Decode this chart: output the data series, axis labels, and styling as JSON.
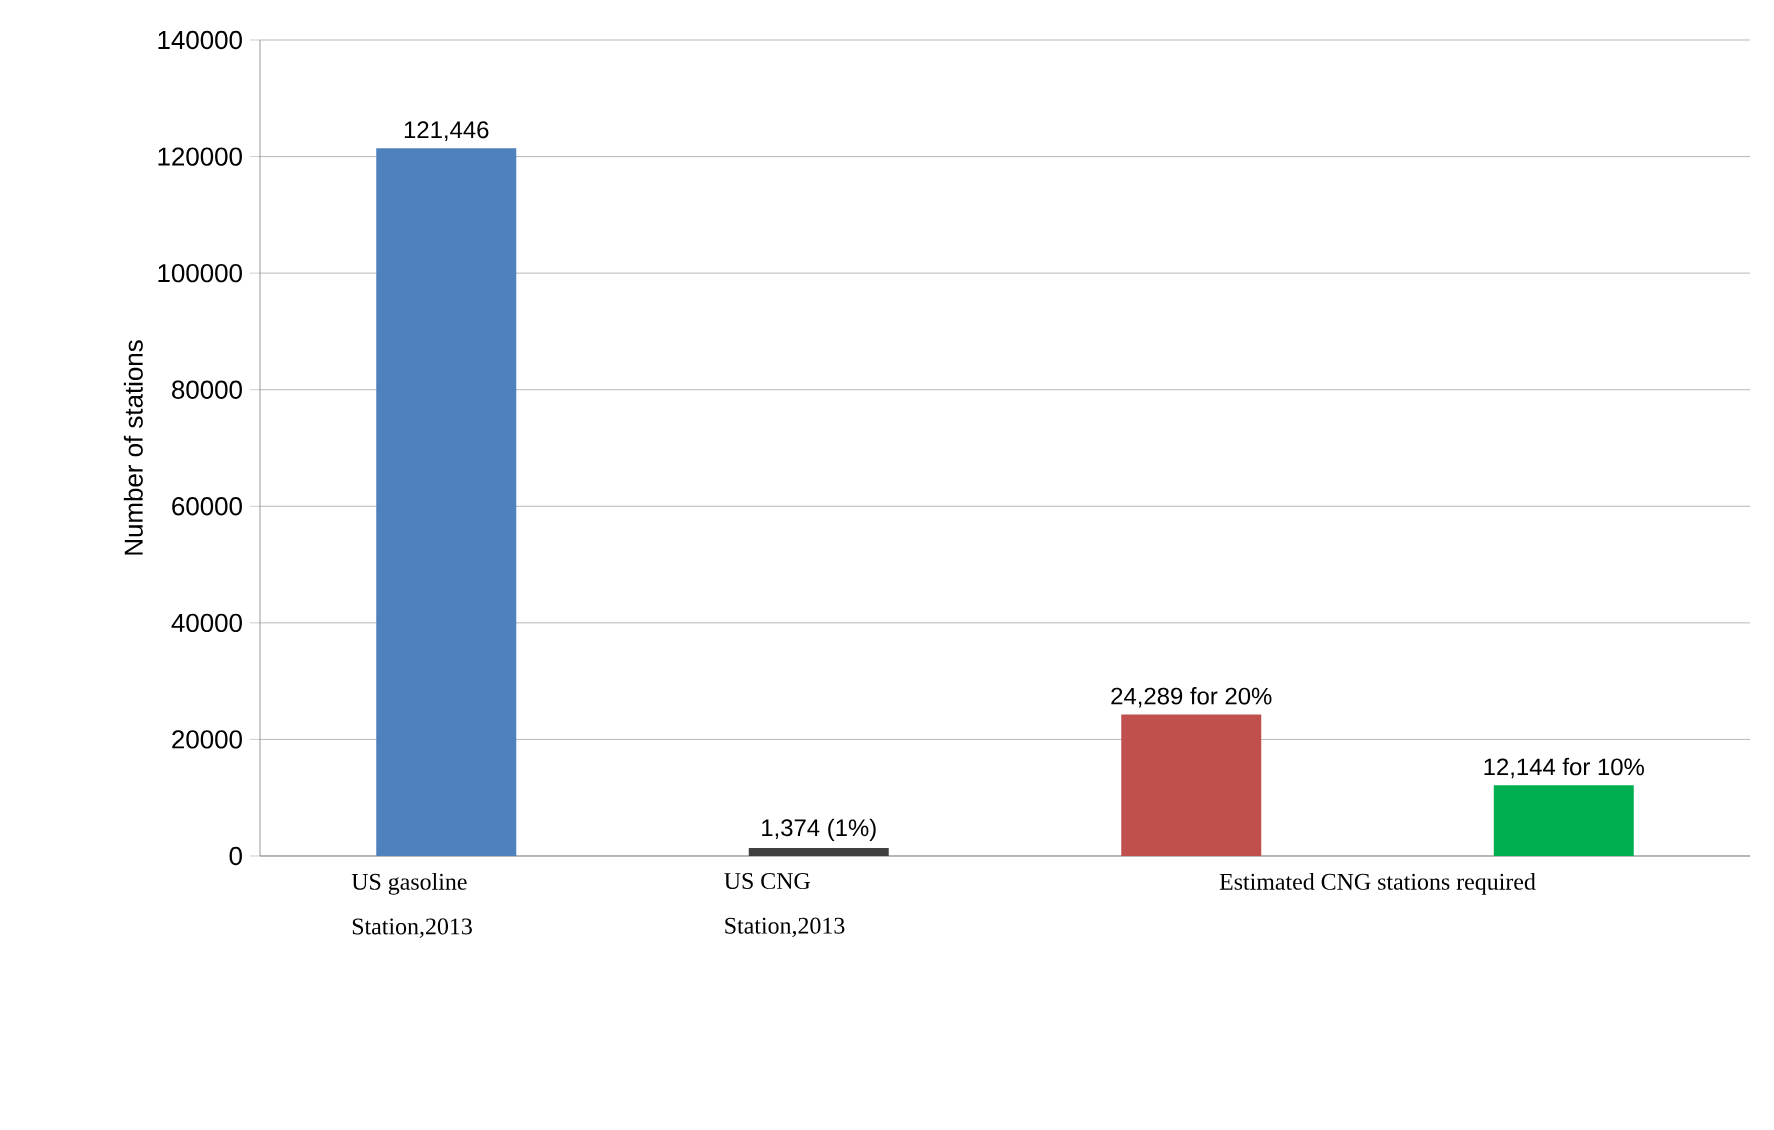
{
  "chart_data": {
    "type": "bar",
    "ylabel": "Number of stations",
    "categories": [
      "US gasoline Station,2013",
      "US CNG Station,2013",
      "Estimated CNG stations required",
      null
    ],
    "values": [
      121446,
      1374,
      24289,
      12144
    ],
    "colors": [
      "#4f81bd",
      "#404040",
      "#c0504d",
      "#00b050"
    ],
    "value_labels": [
      "121,446",
      "1,374 (1%)",
      "24,289 for 20%",
      "12,144 for 10%"
    ],
    "ylim": [
      0,
      140000
    ],
    "yticks": [
      0,
      20000,
      40000,
      60000,
      80000,
      100000,
      120000,
      140000
    ],
    "grid": "y"
  }
}
